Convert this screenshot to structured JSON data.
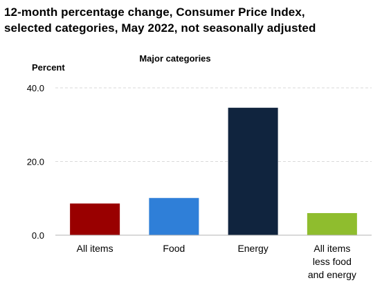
{
  "chart_data": {
    "type": "bar",
    "title_lines": [
      "12-month percentage change, Consumer Price Index,",
      "selected categories, May 2022, not seasonally adjusted"
    ],
    "subtitle": "Major categories",
    "ylabel": "Percent",
    "xlabel": "",
    "ylim": [
      0,
      40
    ],
    "yticks": [
      0,
      20,
      40
    ],
    "ytick_labels": [
      "0.0",
      "20.0",
      "40.0"
    ],
    "grid": "horizontal-dashed",
    "categories": [
      [
        "All items"
      ],
      [
        "Food"
      ],
      [
        "Energy"
      ],
      [
        "All items",
        "less food",
        "and energy"
      ]
    ],
    "values": [
      8.6,
      10.1,
      34.6,
      6.0
    ],
    "colors": [
      "#990000",
      "#2f7fd8",
      "#10243e",
      "#8fbd2e"
    ]
  }
}
